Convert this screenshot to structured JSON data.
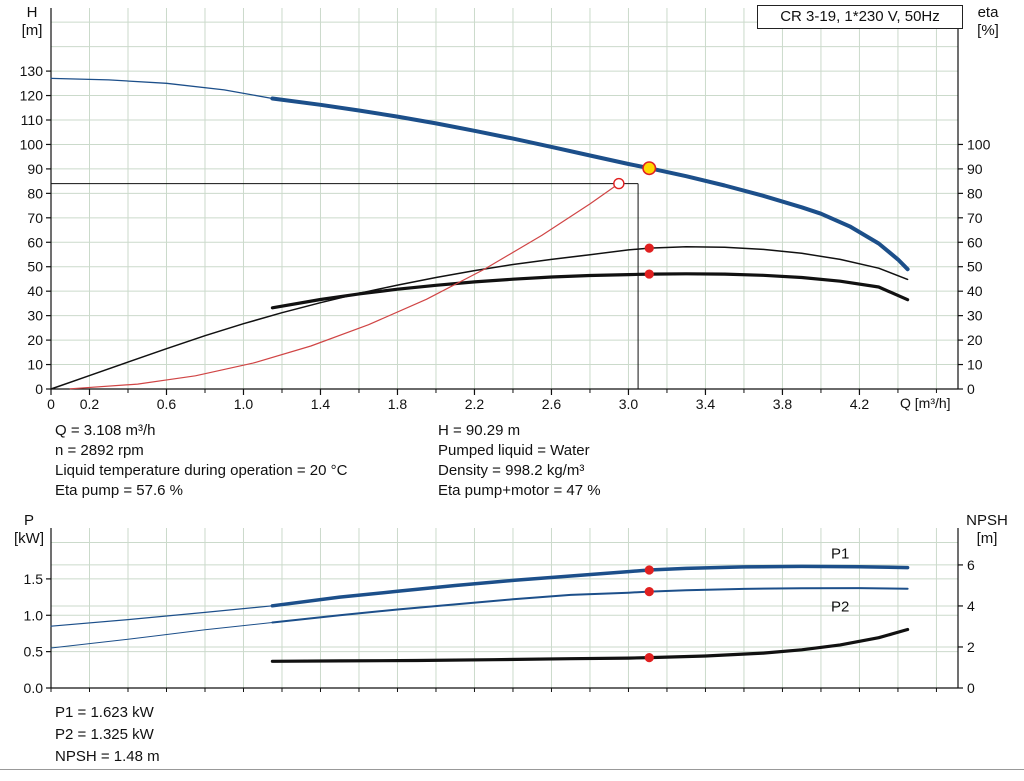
{
  "title_box": {
    "label": "CR 3-19, 1*230 V, 50Hz"
  },
  "info_top_left": [
    "Q = 3.108 m³/h",
    "n = 2892 rpm",
    "Liquid temperature during operation = 20 °C",
    "Eta pump = 57.6 %"
  ],
  "info_top_right": [
    "H = 90.29 m",
    "Pumped liquid = Water",
    "Density = 998.2 kg/m³",
    "Eta pump+motor = 47 %"
  ],
  "info_bottom": [
    "P1 = 1.623 kW",
    "P2 = 1.325 kW",
    "NPSH = 1.48 m"
  ],
  "colors": {
    "curve_blue": "#1c4f8a",
    "black": "#111111",
    "red": "#e02020",
    "system_red": "#d04545",
    "yellow": "#ffd800",
    "grid": "#cbdacb",
    "axis": "#111111"
  },
  "chart_data": [
    {
      "id": "hq-chart",
      "type": "line",
      "x_axis": {
        "label": "Q [m³/h]",
        "min": 0,
        "max": 4.712,
        "minor_step": 0.2,
        "labeled_ticks": [
          {
            "v": 0,
            "t": "0"
          },
          {
            "v": 0.2,
            "t": "0.2"
          },
          {
            "v": 0.6,
            "t": "0.6"
          },
          {
            "v": 1.0,
            "t": "1.0"
          },
          {
            "v": 1.4,
            "t": "1.4"
          },
          {
            "v": 1.8,
            "t": "1.8"
          },
          {
            "v": 2.2,
            "t": "2.2"
          },
          {
            "v": 2.6,
            "t": "2.6"
          },
          {
            "v": 3.0,
            "t": "3.0"
          },
          {
            "v": 3.4,
            "t": "3.4"
          },
          {
            "v": 3.8,
            "t": "3.8"
          },
          {
            "v": 4.2,
            "t": "4.2"
          }
        ]
      },
      "y_left": {
        "label_lines": [
          "H",
          "[m]"
        ],
        "min": 0,
        "max": 155.8,
        "ticks": [
          {
            "v": 0,
            "t": "0"
          },
          {
            "v": 10,
            "t": "10"
          },
          {
            "v": 20,
            "t": "20"
          },
          {
            "v": 30,
            "t": "30"
          },
          {
            "v": 40,
            "t": "40"
          },
          {
            "v": 50,
            "t": "50"
          },
          {
            "v": 60,
            "t": "60"
          },
          {
            "v": 70,
            "t": "70"
          },
          {
            "v": 80,
            "t": "80"
          },
          {
            "v": 90,
            "t": "90"
          },
          {
            "v": 100,
            "t": "100"
          },
          {
            "v": 110,
            "t": "110"
          },
          {
            "v": 120,
            "t": "120"
          },
          {
            "v": 130,
            "t": "130"
          }
        ]
      },
      "y_right": {
        "label_lines": [
          "eta",
          "[%]"
        ],
        "min": 0,
        "max": 155.8,
        "ticks": [
          {
            "v": 0,
            "t": "0"
          },
          {
            "v": 10,
            "t": "10"
          },
          {
            "v": 20,
            "t": "20"
          },
          {
            "v": 30,
            "t": "30"
          },
          {
            "v": 40,
            "t": "40"
          },
          {
            "v": 50,
            "t": "50"
          },
          {
            "v": 60,
            "t": "60"
          },
          {
            "v": 70,
            "t": "70"
          },
          {
            "v": 80,
            "t": "80"
          },
          {
            "v": 90,
            "t": "90"
          },
          {
            "v": 100,
            "t": "100"
          }
        ]
      },
      "hgrid": {
        "left": [
          10,
          20,
          30,
          40,
          50,
          60,
          70,
          80,
          90,
          100,
          110,
          120,
          130,
          140,
          150
        ]
      },
      "series": [
        {
          "name": "pump-curve-lead",
          "axis": "left",
          "color": "curve_blue",
          "width": 1.3,
          "points": [
            [
              0,
              127
            ],
            [
              0.3,
              126.4
            ],
            [
              0.6,
              125.0
            ],
            [
              0.9,
              122.3
            ],
            [
              1.15,
              118.8
            ]
          ]
        },
        {
          "name": "pump-curve",
          "axis": "left",
          "color": "curve_blue",
          "width": 4,
          "points": [
            [
              1.15,
              118.8
            ],
            [
              1.4,
              116.2
            ],
            [
              1.6,
              113.9
            ],
            [
              1.8,
              111.4
            ],
            [
              2.0,
              108.6
            ],
            [
              2.2,
              105.6
            ],
            [
              2.4,
              102.4
            ],
            [
              2.6,
              99.0
            ],
            [
              2.8,
              95.5
            ],
            [
              3.0,
              92.0
            ],
            [
              3.108,
              90.29
            ],
            [
              3.3,
              87.0
            ],
            [
              3.5,
              83.2
            ],
            [
              3.7,
              79.0
            ],
            [
              3.9,
              74.3
            ],
            [
              4.0,
              71.7
            ],
            [
              4.15,
              66.5
            ],
            [
              4.3,
              59.5
            ],
            [
              4.4,
              53.0
            ],
            [
              4.45,
              49.0
            ]
          ]
        },
        {
          "name": "eta-pump-curve",
          "axis": "left",
          "color": "black",
          "width": 1.5,
          "points": [
            [
              0,
              0
            ],
            [
              0.2,
              5.5
            ],
            [
              0.4,
              11.0
            ],
            [
              0.6,
              16.5
            ],
            [
              0.8,
              21.8
            ],
            [
              1.0,
              26.7
            ],
            [
              1.2,
              31.2
            ],
            [
              1.4,
              35.3
            ],
            [
              1.6,
              39.1
            ],
            [
              1.8,
              42.5
            ],
            [
              2.0,
              45.6
            ],
            [
              2.2,
              48.4
            ],
            [
              2.4,
              50.9
            ],
            [
              2.6,
              53.0
            ],
            [
              2.8,
              54.9
            ],
            [
              3.0,
              56.9
            ],
            [
              3.108,
              57.6
            ],
            [
              3.3,
              58.2
            ],
            [
              3.5,
              58.0
            ],
            [
              3.7,
              57.1
            ],
            [
              3.9,
              55.5
            ],
            [
              4.1,
              53.0
            ],
            [
              4.3,
              49.4
            ],
            [
              4.45,
              44.8
            ]
          ]
        },
        {
          "name": "eta-pump-motor-curve",
          "axis": "left",
          "color": "black",
          "width": 3.2,
          "points": [
            [
              1.15,
              33.2
            ],
            [
              1.4,
              36.6
            ],
            [
              1.6,
              38.9
            ],
            [
              1.8,
              40.8
            ],
            [
              2.0,
              42.4
            ],
            [
              2.2,
              43.8
            ],
            [
              2.4,
              44.9
            ],
            [
              2.6,
              45.8
            ],
            [
              2.8,
              46.4
            ],
            [
              3.0,
              46.8
            ],
            [
              3.108,
              47.0
            ],
            [
              3.3,
              47.1
            ],
            [
              3.5,
              47.0
            ],
            [
              3.7,
              46.5
            ],
            [
              3.9,
              45.6
            ],
            [
              4.1,
              44.1
            ],
            [
              4.3,
              41.7
            ],
            [
              4.45,
              36.5
            ]
          ]
        },
        {
          "name": "system-curve",
          "axis": "left",
          "color": "system_red",
          "width": 1.2,
          "points": [
            [
              0.1,
              0.1
            ],
            [
              0.45,
              2.0
            ],
            [
              0.75,
              5.4
            ],
            [
              1.05,
              10.6
            ],
            [
              1.35,
              17.6
            ],
            [
              1.65,
              26.3
            ],
            [
              1.95,
              36.7
            ],
            [
              2.25,
              48.9
            ],
            [
              2.55,
              62.8
            ],
            [
              2.8,
              75.7
            ],
            [
              2.95,
              84
            ]
          ]
        }
      ],
      "markers": [
        {
          "kind": "hline",
          "name": "duty-h-line",
          "y": 84,
          "x1": 0,
          "x2": 3.05,
          "color": "black",
          "w": 1
        },
        {
          "kind": "vline",
          "name": "duty-q-line",
          "x": 3.05,
          "y1": 0,
          "y2": 84,
          "color": "black",
          "w": 1
        },
        {
          "kind": "circle",
          "name": "requested-duty-point",
          "x": 2.95,
          "y": 84,
          "r": 5,
          "fill": "#ffffff",
          "stroke": "red",
          "sw": 1.4
        },
        {
          "kind": "circle",
          "name": "operating-point",
          "x": 3.108,
          "y": 90.29,
          "r": 6.2,
          "fill": "yellow",
          "stroke": "red",
          "sw": 1.6
        },
        {
          "kind": "circle",
          "name": "eta-pump-point",
          "x": 3.108,
          "y": 57.6,
          "r": 4.6,
          "fill": "red"
        },
        {
          "kind": "circle",
          "name": "eta-pump-motor-point",
          "x": 3.108,
          "y": 47,
          "r": 4.6,
          "fill": "red"
        }
      ]
    },
    {
      "id": "power-chart",
      "type": "line",
      "x_axis": {
        "label": "",
        "min": 0,
        "max": 4.712,
        "minor_step": 0.2,
        "labeled_ticks": []
      },
      "y_left": {
        "label_lines": [
          "P",
          "[kW]"
        ],
        "min": 0,
        "max": 2.2,
        "ticks": [
          {
            "v": 0,
            "t": "0.0"
          },
          {
            "v": 0.5,
            "t": "0.5"
          },
          {
            "v": 1.0,
            "t": "1.0"
          },
          {
            "v": 1.5,
            "t": "1.5"
          }
        ]
      },
      "y_right": {
        "label_lines": [
          "NPSH",
          "[m]"
        ],
        "min": 0,
        "max": 7.8,
        "ticks": [
          {
            "v": 0,
            "t": "0"
          },
          {
            "v": 2,
            "t": "2"
          },
          {
            "v": 4,
            "t": "4"
          },
          {
            "v": 6,
            "t": "6"
          }
        ]
      },
      "hgrid": {
        "left": [
          0.5,
          1.0,
          1.5,
          2.0
        ],
        "right": [
          2,
          4,
          6
        ]
      },
      "series": [
        {
          "name": "p1-curve-lead",
          "axis": "left",
          "color": "curve_blue",
          "width": 1.2,
          "points": [
            [
              0,
              0.85
            ],
            [
              0.4,
              0.94
            ],
            [
              0.8,
              1.04
            ],
            [
              1.15,
              1.13
            ]
          ]
        },
        {
          "name": "p1-curve",
          "axis": "left",
          "color": "curve_blue",
          "width": 3.5,
          "points": [
            [
              1.15,
              1.13
            ],
            [
              1.5,
              1.25
            ],
            [
              1.8,
              1.33
            ],
            [
              2.1,
              1.41
            ],
            [
              2.4,
              1.48
            ],
            [
              2.7,
              1.54
            ],
            [
              3.0,
              1.6
            ],
            [
              3.108,
              1.623
            ],
            [
              3.3,
              1.645
            ],
            [
              3.6,
              1.665
            ],
            [
              3.9,
              1.672
            ],
            [
              4.2,
              1.668
            ],
            [
              4.45,
              1.655
            ]
          ]
        },
        {
          "name": "p2-curve-lead",
          "axis": "left",
          "color": "curve_blue",
          "width": 1,
          "points": [
            [
              0,
              0.55
            ],
            [
              0.4,
              0.67
            ],
            [
              0.8,
              0.8
            ],
            [
              1.15,
              0.9
            ]
          ]
        },
        {
          "name": "p2-curve",
          "axis": "left",
          "color": "curve_blue",
          "width": 2,
          "points": [
            [
              1.15,
              0.9
            ],
            [
              1.5,
              1.0
            ],
            [
              1.8,
              1.08
            ],
            [
              2.1,
              1.15
            ],
            [
              2.4,
              1.22
            ],
            [
              2.7,
              1.28
            ],
            [
              3.0,
              1.31
            ],
            [
              3.108,
              1.325
            ],
            [
              3.3,
              1.345
            ],
            [
              3.6,
              1.362
            ],
            [
              3.9,
              1.372
            ],
            [
              4.2,
              1.373
            ],
            [
              4.45,
              1.365
            ]
          ]
        },
        {
          "name": "npsh-curve",
          "axis": "right",
          "color": "black",
          "width": 3.2,
          "points": [
            [
              1.15,
              1.3
            ],
            [
              1.5,
              1.32
            ],
            [
              1.9,
              1.34
            ],
            [
              2.3,
              1.38
            ],
            [
              2.7,
              1.43
            ],
            [
              3.0,
              1.46
            ],
            [
              3.108,
              1.48
            ],
            [
              3.4,
              1.56
            ],
            [
              3.7,
              1.7
            ],
            [
              3.9,
              1.86
            ],
            [
              4.1,
              2.1
            ],
            [
              4.3,
              2.45
            ],
            [
              4.45,
              2.85
            ]
          ]
        }
      ],
      "markers": [
        {
          "kind": "circle",
          "name": "p1-point",
          "x": 3.108,
          "y": 1.623,
          "r": 4.6,
          "fill": "red"
        },
        {
          "kind": "circle",
          "name": "p2-point",
          "x": 3.108,
          "y": 1.325,
          "r": 4.6,
          "fill": "red"
        },
        {
          "kind": "circle",
          "name": "npsh-point",
          "axis": "right",
          "x": 3.108,
          "y": 1.48,
          "r": 4.6,
          "fill": "red"
        }
      ],
      "annotations": [
        {
          "name": "p1-label",
          "text": "P1",
          "x": 4.1,
          "y": 1.78,
          "color": "curve_blue",
          "size": 15
        },
        {
          "name": "p2-label",
          "text": "P2",
          "x": 4.1,
          "y": 1.05,
          "color": "curve_blue",
          "size": 15
        }
      ]
    }
  ]
}
